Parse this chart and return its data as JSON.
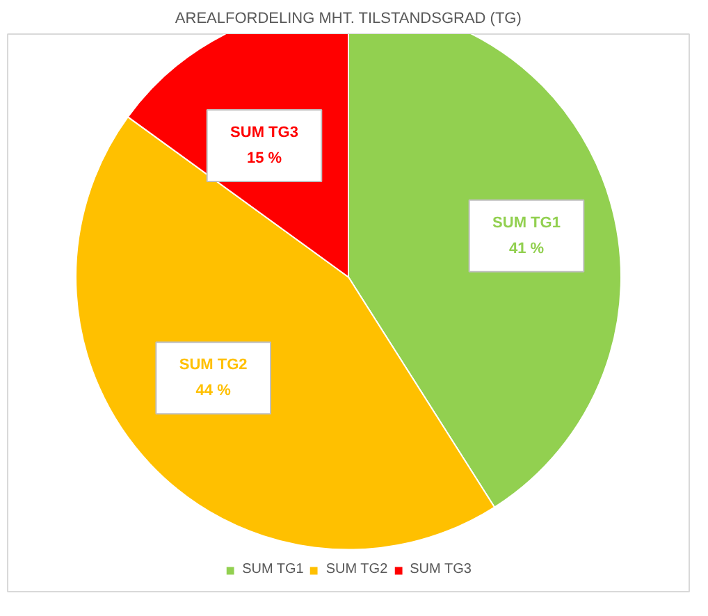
{
  "chart_data": {
    "type": "pie",
    "title": "AREALFORDELING MHT. TILSTANDSGRAD (TG)",
    "categories": [
      "SUM TG1",
      "SUM TG2",
      "SUM TG3"
    ],
    "values": [
      41,
      44,
      15
    ],
    "colors": [
      "#92d050",
      "#ffc000",
      "#ff0000"
    ],
    "value_labels": [
      "41 %",
      "44 %",
      "15 %"
    ],
    "legend": "bottom"
  }
}
